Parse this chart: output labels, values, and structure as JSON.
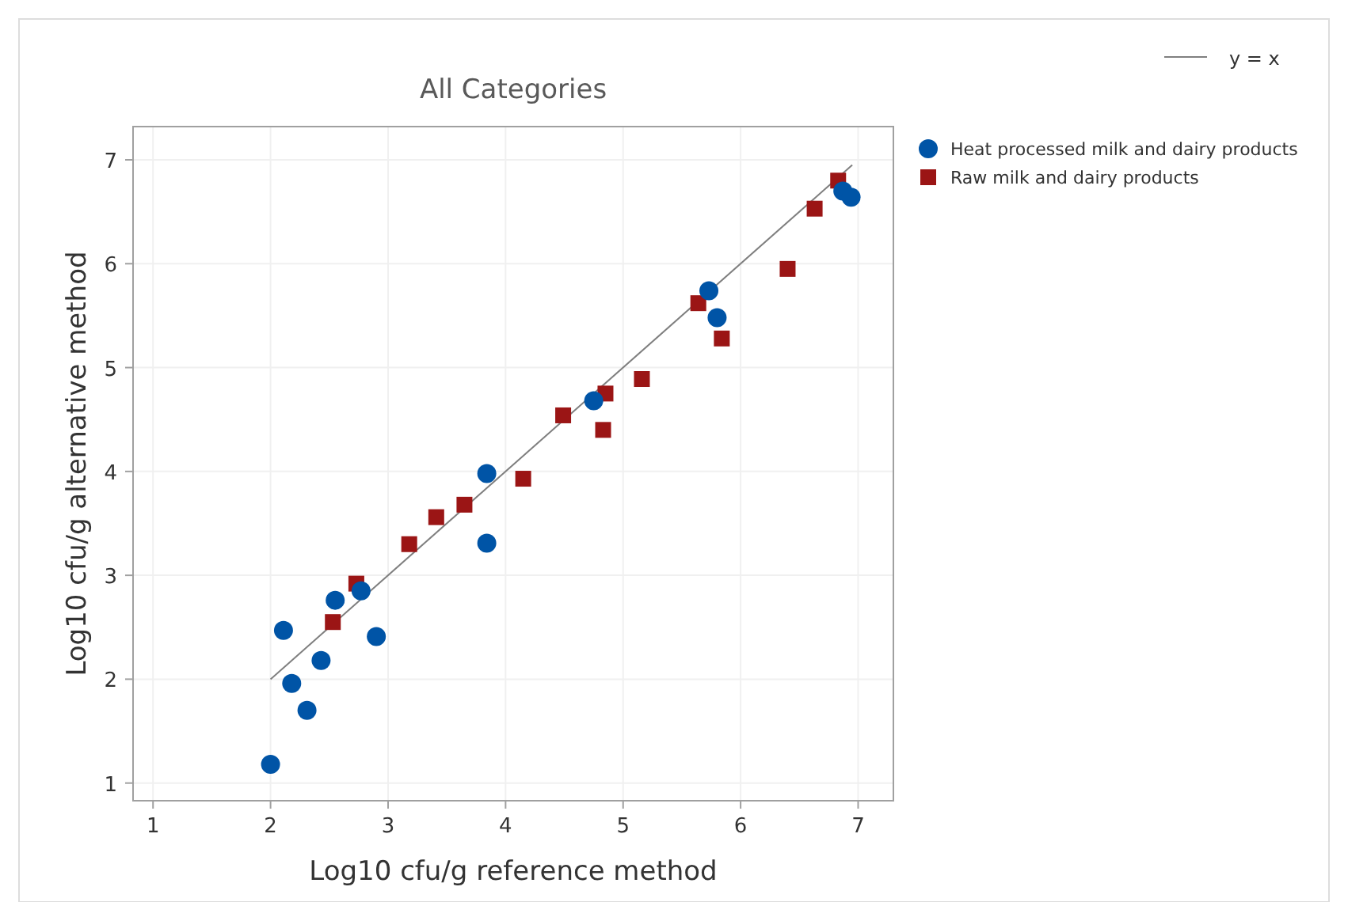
{
  "chart_data": {
    "type": "scatter",
    "title": "All Categories",
    "xlabel": "Log10 cfu/g reference method",
    "ylabel": "Log10 cfu/g alternative method",
    "xlim": [
      0.83,
      7.3
    ],
    "ylim": [
      0.83,
      7.32
    ],
    "xticks": [
      1,
      2,
      3,
      4,
      5,
      6,
      7
    ],
    "yticks": [
      1,
      2,
      3,
      4,
      5,
      6,
      7
    ],
    "grid": true,
    "legend": "right",
    "series": [
      {
        "name": "Heat processed milk and dairy products",
        "color": "#0054a6",
        "marker": "circle",
        "x": [
          2.0,
          2.11,
          2.18,
          2.31,
          2.43,
          2.55,
          2.77,
          2.9,
          3.84,
          3.84,
          4.75,
          5.73,
          5.8,
          6.87,
          6.94
        ],
        "values": [
          1.18,
          2.47,
          1.96,
          1.7,
          2.18,
          2.76,
          2.85,
          2.41,
          3.98,
          3.31,
          4.68,
          5.74,
          5.48,
          6.7,
          6.64
        ]
      },
      {
        "name": "Raw milk and dairy products",
        "color": "#9b1515",
        "marker": "square",
        "x": [
          2.53,
          2.73,
          3.18,
          3.41,
          3.65,
          4.15,
          4.49,
          4.85,
          4.83,
          5.16,
          5.64,
          5.84,
          6.4,
          6.63,
          6.83
        ],
        "values": [
          2.55,
          2.92,
          3.3,
          3.56,
          3.68,
          3.93,
          4.54,
          4.75,
          4.4,
          4.89,
          5.62,
          5.28,
          5.95,
          6.53,
          6.8
        ]
      },
      {
        "name": "y = x",
        "type": "line",
        "color": "#7f7f7f",
        "x": [
          2,
          6.95
        ],
        "values": [
          2,
          6.95
        ]
      }
    ]
  }
}
